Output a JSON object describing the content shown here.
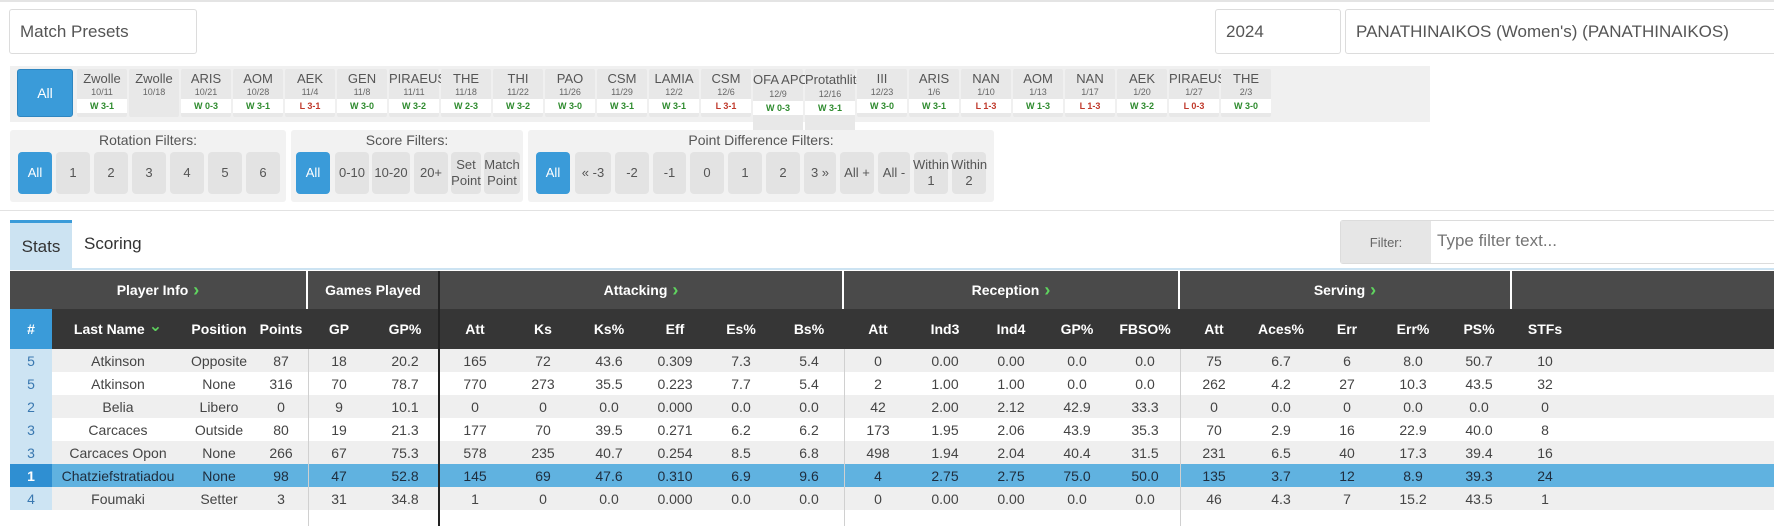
{
  "header": {
    "match_presets": "Match Presets",
    "year": "2024",
    "team": "PANATHINAIKOS (Women's) (PANATHINAIKOS)"
  },
  "matches": {
    "all_label": "All",
    "items": [
      {
        "opp": "Zwolle",
        "date": "10/11",
        "result": "W 3-1",
        "win": true
      },
      {
        "opp": "Zwolle",
        "date": "10/18",
        "result": "",
        "win": true
      },
      {
        "opp": "ARIS",
        "date": "10/21",
        "result": "W 0-3",
        "win": true
      },
      {
        "opp": "AOM",
        "date": "10/28",
        "result": "W 3-1",
        "win": true
      },
      {
        "opp": "AEK",
        "date": "11/4",
        "result": "L 3-1",
        "win": false
      },
      {
        "opp": "GEN",
        "date": "11/8",
        "result": "W 3-0",
        "win": true
      },
      {
        "opp": "PIRAEUS",
        "date": "11/11",
        "result": "W 3-2",
        "win": true
      },
      {
        "opp": "THE",
        "date": "11/18",
        "result": "W 2-3",
        "win": true
      },
      {
        "opp": "THI",
        "date": "11/22",
        "result": "W 3-2",
        "win": true
      },
      {
        "opp": "PAO",
        "date": "11/26",
        "result": "W 3-0",
        "win": true
      },
      {
        "opp": "CSM",
        "date": "11/29",
        "result": "W 3-1",
        "win": true
      },
      {
        "opp": "LAMIA",
        "date": "12/2",
        "result": "W 3-1",
        "win": true
      },
      {
        "opp": "CSM",
        "date": "12/6",
        "result": "L 3-1",
        "win": false
      },
      {
        "opp": "OFA APOLLON",
        "date": "12/9",
        "result": "W 0-3",
        "win": true
      },
      {
        "opp": "Protathlite Pefkon",
        "date": "12/16",
        "result": "W 3-1",
        "win": true
      },
      {
        "opp": "III",
        "date": "12/23",
        "result": "W 3-0",
        "win": true
      },
      {
        "opp": "ARIS",
        "date": "1/6",
        "result": "W 3-1",
        "win": true
      },
      {
        "opp": "NAN",
        "date": "1/10",
        "result": "L 1-3",
        "win": false
      },
      {
        "opp": "AOM",
        "date": "1/13",
        "result": "W 1-3",
        "win": true
      },
      {
        "opp": "NAN",
        "date": "1/17",
        "result": "L 1-3",
        "win": false
      },
      {
        "opp": "AEK",
        "date": "1/20",
        "result": "W 3-2",
        "win": true
      },
      {
        "opp": "PIRAEUS",
        "date": "1/27",
        "result": "L 0-3",
        "win": false
      },
      {
        "opp": "THE",
        "date": "2/3",
        "result": "W 3-0",
        "win": true
      }
    ]
  },
  "filters": {
    "rotation": {
      "title": "Rotation Filters:",
      "options": [
        "All",
        "1",
        "2",
        "3",
        "4",
        "5",
        "6"
      ]
    },
    "score": {
      "title": "Score Filters:",
      "options": [
        "All",
        "0-10",
        "10-20",
        "20+",
        "Set Point",
        "Match Point"
      ]
    },
    "point_diff": {
      "title": "Point Difference Filters:",
      "options": [
        "All",
        "« -3",
        "-2",
        "-1",
        "0",
        "1",
        "2",
        "3 »",
        "All +",
        "All -",
        "Within 1",
        "Within 2"
      ]
    }
  },
  "tabs": {
    "stats": "Stats",
    "scoring": "Scoring"
  },
  "filter": {
    "label": "Filter:",
    "placeholder": "Type filter text..."
  },
  "table": {
    "groups": [
      "Player Info",
      "Games Played",
      "Attacking",
      "Reception",
      "Serving"
    ],
    "columns": [
      "#",
      "Last Name",
      "Position",
      "Points",
      "GP",
      "GP%",
      "Att",
      "Ks",
      "Ks%",
      "Eff",
      "Es%",
      "Bs%",
      "Att",
      "Ind3",
      "Ind4",
      "GP%",
      "FBSO%",
      "Att",
      "Aces%",
      "Err",
      "Err%",
      "PS%",
      "STFs"
    ],
    "rows": [
      [
        "5",
        "Atkinson",
        "Opposite",
        "87",
        "18",
        "20.2",
        "165",
        "72",
        "43.6",
        "0.309",
        "7.3",
        "5.4",
        "0",
        "0.00",
        "0.00",
        "0.0",
        "0.0",
        "75",
        "6.7",
        "6",
        "8.0",
        "50.7",
        "10"
      ],
      [
        "5",
        "Atkinson",
        "None",
        "316",
        "70",
        "78.7",
        "770",
        "273",
        "35.5",
        "0.223",
        "7.7",
        "5.4",
        "2",
        "1.00",
        "1.00",
        "0.0",
        "0.0",
        "262",
        "4.2",
        "27",
        "10.3",
        "43.5",
        "32"
      ],
      [
        "2",
        "Belia",
        "Libero",
        "0",
        "9",
        "10.1",
        "0",
        "0",
        "0.0",
        "0.000",
        "0.0",
        "0.0",
        "42",
        "2.00",
        "2.12",
        "42.9",
        "33.3",
        "0",
        "0.0",
        "0",
        "0.0",
        "0.0",
        "0"
      ],
      [
        "3",
        "Carcaces",
        "Outside",
        "80",
        "19",
        "21.3",
        "177",
        "70",
        "39.5",
        "0.271",
        "6.2",
        "6.2",
        "173",
        "1.95",
        "2.06",
        "43.9",
        "35.3",
        "70",
        "2.9",
        "16",
        "22.9",
        "40.0",
        "8"
      ],
      [
        "3",
        "Carcaces Opon",
        "None",
        "266",
        "67",
        "75.3",
        "578",
        "235",
        "40.7",
        "0.254",
        "8.5",
        "6.8",
        "498",
        "1.94",
        "2.04",
        "40.4",
        "31.5",
        "231",
        "6.5",
        "40",
        "17.3",
        "39.4",
        "16"
      ],
      [
        "1",
        "Chatziefstratiadou",
        "None",
        "98",
        "47",
        "52.8",
        "145",
        "69",
        "47.6",
        "0.310",
        "6.9",
        "9.6",
        "4",
        "2.75",
        "2.75",
        "75.0",
        "50.0",
        "135",
        "3.7",
        "12",
        "8.9",
        "39.3",
        "24"
      ],
      [
        "4",
        "Foumaki",
        "Setter",
        "3",
        "31",
        "34.8",
        "1",
        "0",
        "0.0",
        "0.000",
        "0.0",
        "0.0",
        "0",
        "0.00",
        "0.00",
        "0.0",
        "0.0",
        "46",
        "4.3",
        "7",
        "15.2",
        "43.5",
        "1"
      ]
    ],
    "highlighted_row": 5
  },
  "colors": {
    "accent": "#3a9bd9",
    "header_dark": "#363636",
    "win": "#2e8b2e",
    "loss": "#c0392b",
    "sort_arrow": "#5fd45f"
  }
}
